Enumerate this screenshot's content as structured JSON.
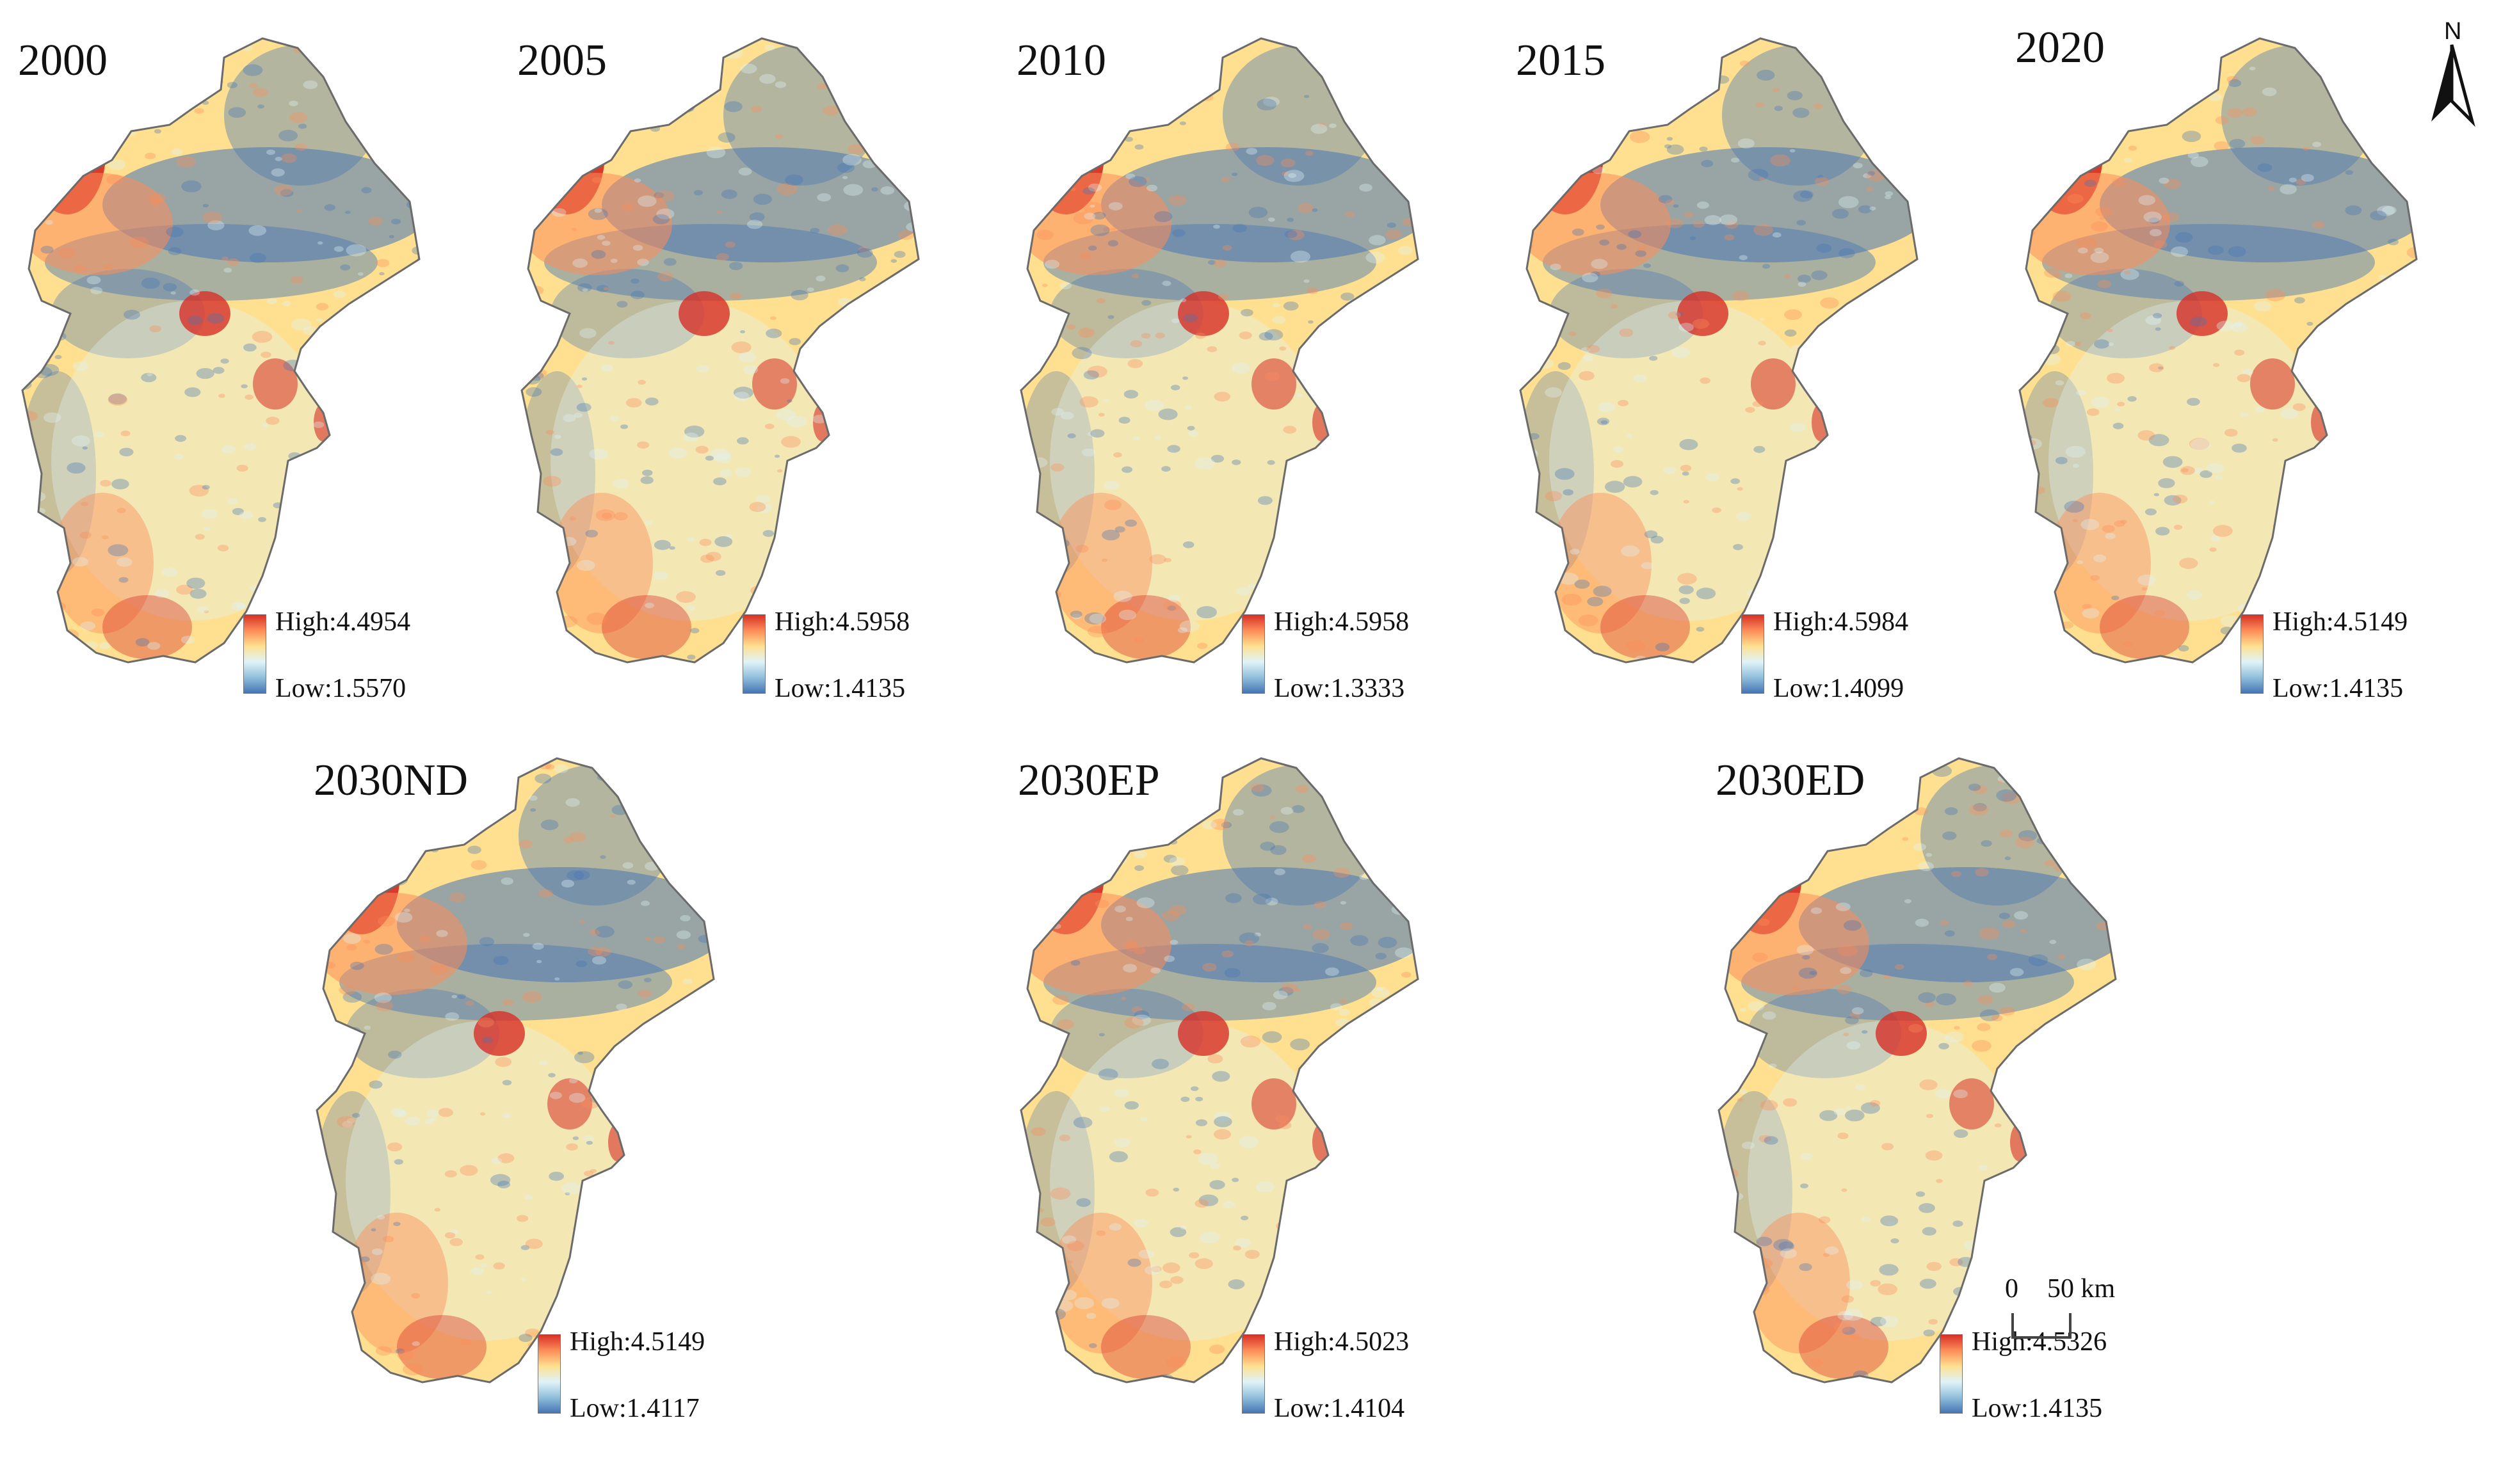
{
  "panels": [
    {
      "title": "2000",
      "high": "High:4.4954",
      "low": "Low:1.5570"
    },
    {
      "title": "2005",
      "high": "High:4.5958",
      "low": "Low:1.4135"
    },
    {
      "title": "2010",
      "high": "High:4.5958",
      "low": "Low:1.3333"
    },
    {
      "title": "2015",
      "high": "High:4.5984",
      "low": "Low:1.4099"
    },
    {
      "title": "2020",
      "high": "High:4.5149",
      "low": "Low:1.4135"
    },
    {
      "title": "2030ND",
      "high": "High:4.5149",
      "low": "Low:1.4117"
    },
    {
      "title": "2030EP",
      "high": "High:4.5023",
      "low": "Low:1.4104"
    },
    {
      "title": "2030ED",
      "high": "High:4.5326",
      "low": "Low:1.4135"
    }
  ],
  "north_arrow": {
    "label": "N"
  },
  "scale_bar": {
    "zero": "0",
    "fifty": "50 km"
  },
  "colors": {
    "high": "#d73027",
    "mid_high": "#fc8d59",
    "mid": "#fee090",
    "mid_low": "#e0f3f8",
    "low": "#4575b4",
    "outline": "#6b6b6b"
  }
}
